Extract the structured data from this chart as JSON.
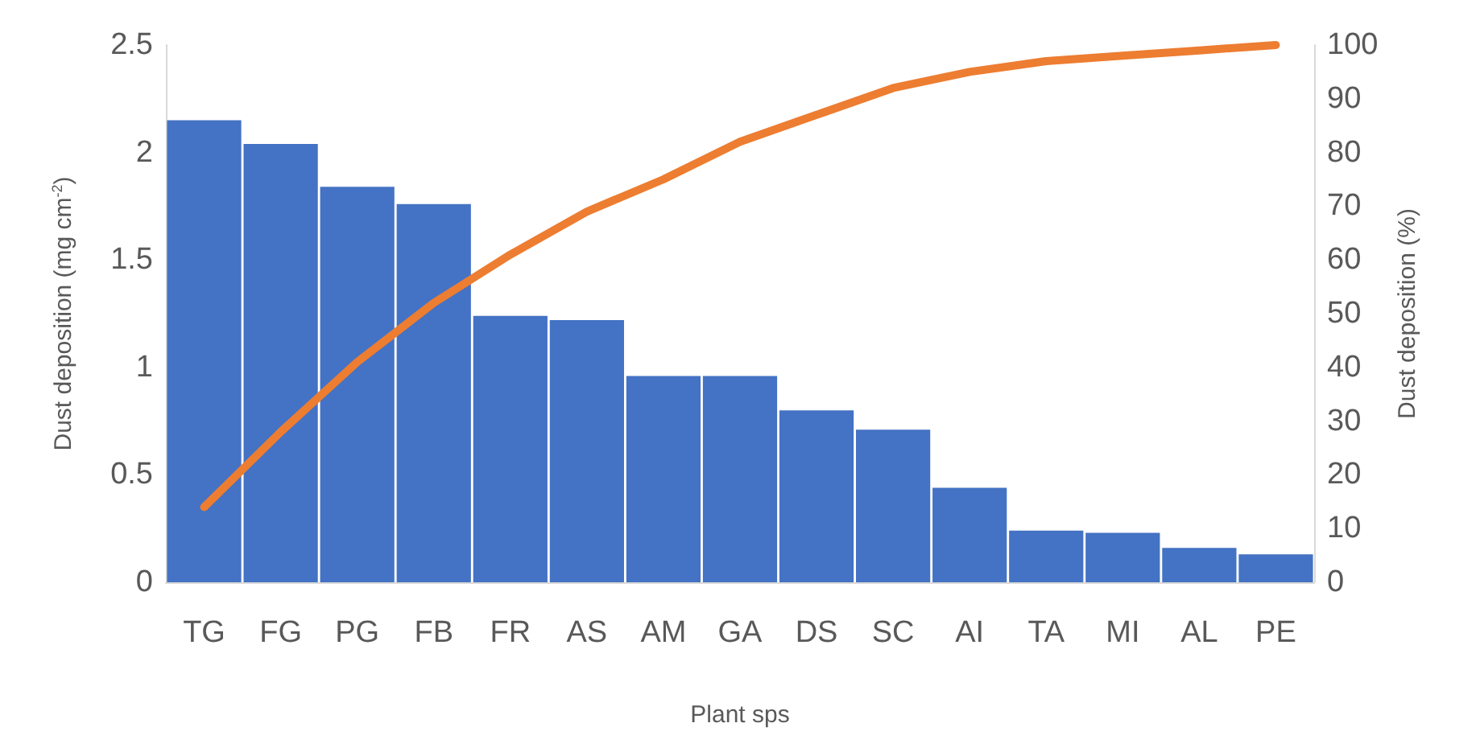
{
  "chart_data": {
    "type": "bar",
    "xlabel": "Plant sps",
    "ylabel": "Dust deposition (mg cm$^{-2}$)",
    "y2label": "Dust deposition (%)",
    "categories": [
      "TG",
      "FG",
      "PG",
      "FB",
      "FR",
      "AS",
      "AM",
      "GA",
      "DS",
      "SC",
      "AI",
      "TA",
      "MI",
      "AL",
      "PE"
    ],
    "series": [
      {
        "color": "#4472c4",
        "values": [
          2.15,
          2.04,
          1.84,
          1.76,
          1.24,
          1.22,
          0.96,
          0.96,
          0.8,
          0.71,
          0.44,
          0.24,
          0.23,
          0.16,
          0.13
        ]
      },
      {
        "type": "line",
        "axis": "y2",
        "color": "#ed7d31",
        "marker": "none",
        "values": [
          14,
          28,
          41,
          52,
          61,
          69,
          75,
          82,
          87,
          92,
          95,
          97,
          98,
          99,
          100
        ]
      }
    ],
    "ylim": [
      0,
      2.5
    ],
    "yticks": [
      0,
      0.5,
      1,
      1.5,
      2,
      2.5
    ],
    "y2lim": [
      0,
      100
    ],
    "y2ticks": [
      0,
      10,
      20,
      30,
      40,
      50,
      60,
      70,
      80,
      90,
      100
    ],
    "grid": false
  }
}
